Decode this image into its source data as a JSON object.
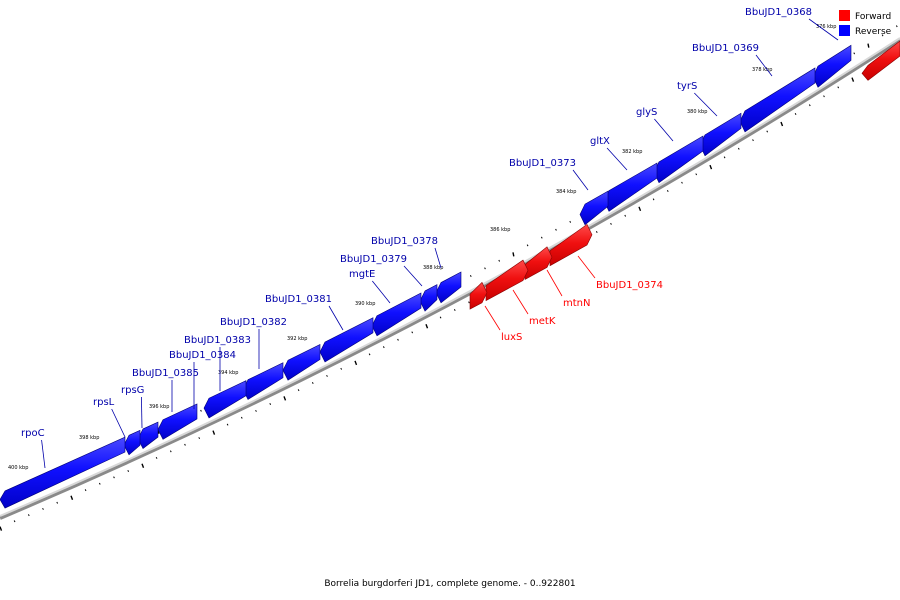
{
  "caption": "Borrelia burgdorferi JD1, complete genome. - 0..922801",
  "legend": {
    "forward_label": "Forward",
    "reverse_label": "Reverse",
    "forward_color": "#ff0000",
    "reverse_color": "#0000ff"
  },
  "kbp_labels": [
    "376 kbp",
    "378 kbp",
    "380 kbp",
    "382 kbp",
    "384 kbp",
    "386 kbp",
    "388 kbp",
    "390 kbp",
    "392 kbp",
    "394 kbp",
    "396 kbp",
    "398 kbp",
    "400 kbp"
  ],
  "genes": [
    {
      "name": "BbuJD1_0368",
      "strand": "reverse"
    },
    {
      "name": "BbuJD1_0369",
      "strand": "reverse"
    },
    {
      "name": "tyrS",
      "strand": "reverse"
    },
    {
      "name": "glyS",
      "strand": "reverse"
    },
    {
      "name": "gltX",
      "strand": "reverse"
    },
    {
      "name": "BbuJD1_0373",
      "strand": "reverse"
    },
    {
      "name": "BbuJD1_0374",
      "strand": "forward"
    },
    {
      "name": "mtnN",
      "strand": "forward"
    },
    {
      "name": "metK",
      "strand": "forward"
    },
    {
      "name": "luxS",
      "strand": "forward"
    },
    {
      "name": "BbuJD1_0378",
      "strand": "reverse"
    },
    {
      "name": "BbuJD1_0379",
      "strand": "reverse"
    },
    {
      "name": "mgtE",
      "strand": "reverse"
    },
    {
      "name": "BbuJD1_0381",
      "strand": "reverse"
    },
    {
      "name": "BbuJD1_0382",
      "strand": "reverse"
    },
    {
      "name": "BbuJD1_0383",
      "strand": "reverse"
    },
    {
      "name": "BbuJD1_0384",
      "strand": "reverse"
    },
    {
      "name": "BbuJD1_0385",
      "strand": "reverse"
    },
    {
      "name": "rpsG",
      "strand": "reverse"
    },
    {
      "name": "rpsL",
      "strand": "reverse"
    },
    {
      "name": "rpoC",
      "strand": "reverse"
    }
  ]
}
